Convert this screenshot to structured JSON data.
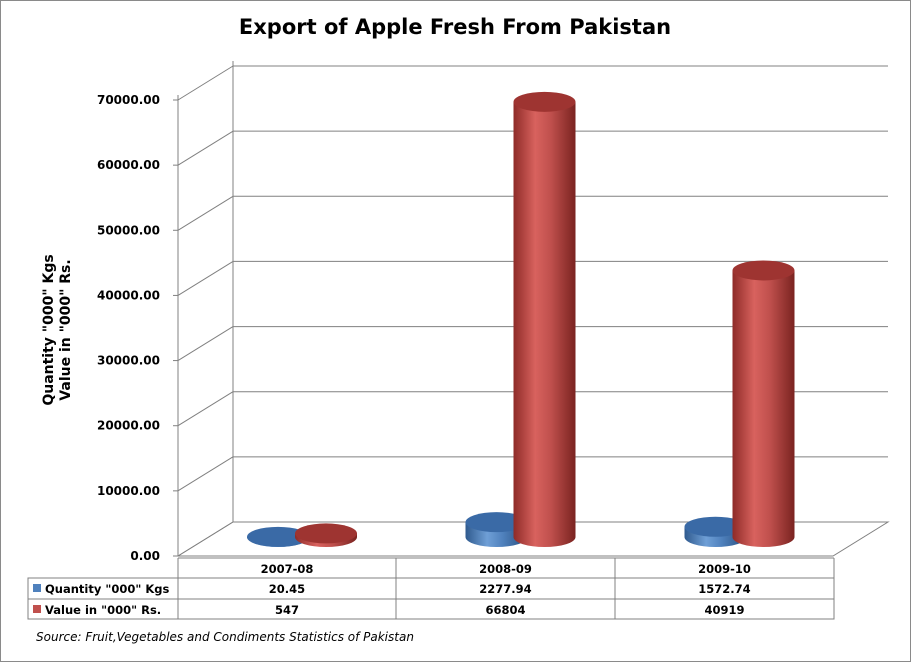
{
  "chart_data": {
    "type": "bar",
    "title": "Export of Apple Fresh From Pakistan",
    "ylabel_lines": [
      "Quantity \"000\" Kgs",
      "Value in \"000\" Rs."
    ],
    "categories": [
      "2007-08",
      "2008-09",
      "2009-10"
    ],
    "series": [
      {
        "name": "Quantity \"000\" Kgs",
        "values": [
          20.45,
          2277.94,
          1572.74
        ],
        "display": [
          "20.45",
          "2277.94",
          "1572.74"
        ],
        "color": "#4f81bd"
      },
      {
        "name": "Value in \"000\" Rs.",
        "values": [
          547,
          66804,
          40919
        ],
        "display": [
          "547",
          "66804",
          "40919"
        ],
        "color": "#c0504d"
      }
    ],
    "ylim": [
      0,
      70000
    ],
    "yticks": [
      "0.00",
      "10000.00",
      "20000.00",
      "30000.00",
      "40000.00",
      "50000.00",
      "60000.00",
      "70000.00"
    ],
    "grid": true,
    "data_table": true,
    "source": "Source: Fruit,Vegetables and Condiments Statistics of Pakistan"
  }
}
